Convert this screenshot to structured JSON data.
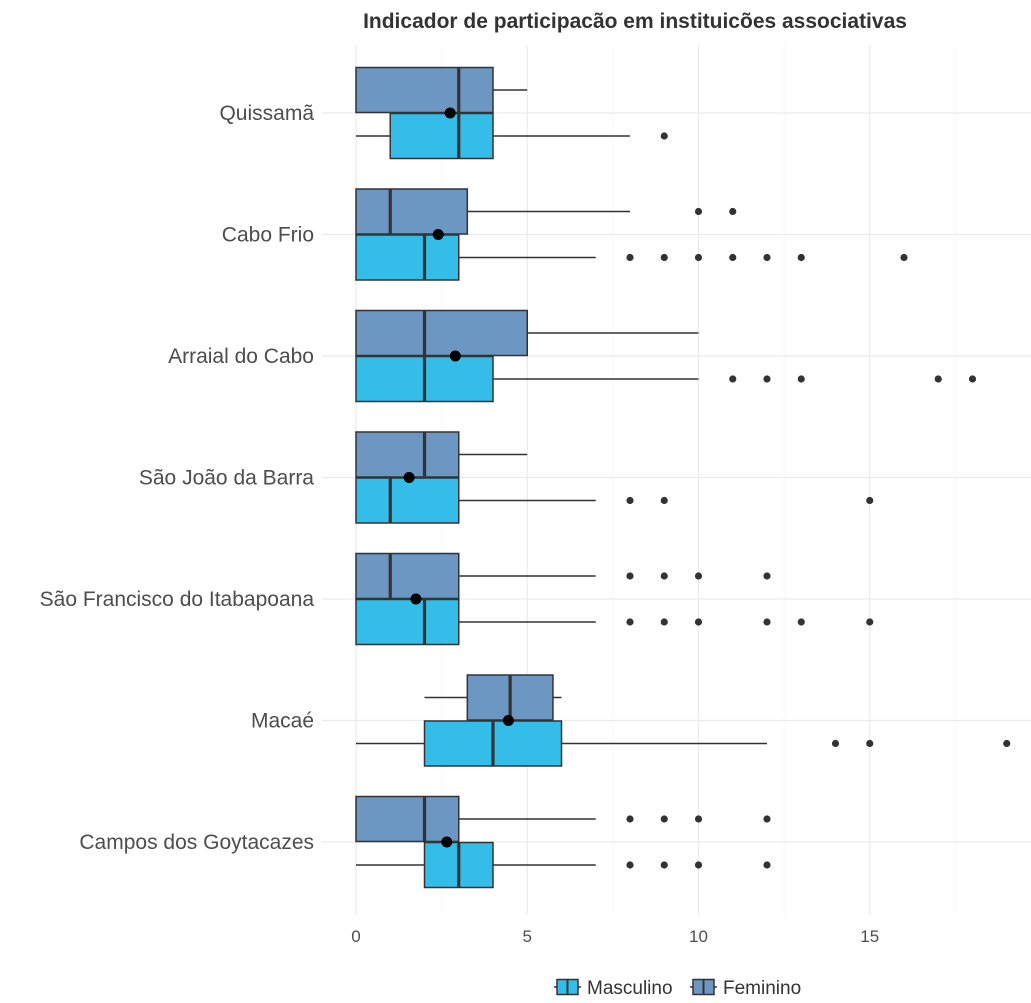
{
  "chart_data": {
    "type": "boxplot",
    "title": "Indicador de participacão em instituicões associativas",
    "xlabel": "",
    "ylabel": "",
    "xlim": [
      0,
      19.5
    ],
    "x_ticks": [
      0,
      5,
      10,
      15
    ],
    "grid": true,
    "legend_position": "bottom",
    "categories": [
      "Quissamã",
      "Cabo Frio",
      "Arraial do Cabo",
      "São João da Barra",
      "São Francisco do Itabapoana",
      "Macaé",
      "Campos dos Goytacazes"
    ],
    "series": [
      {
        "name": "Masculino",
        "color": "#35bde9",
        "boxes": [
          {
            "category": "Quissamã",
            "whisker_low": 0,
            "q1": 1,
            "median": 3,
            "q3": 4,
            "whisker_high": 8,
            "outliers": [
              9
            ]
          },
          {
            "category": "Cabo Frio",
            "whisker_low": 0,
            "q1": 0,
            "median": 2,
            "q3": 3,
            "whisker_high": 7,
            "outliers": [
              8,
              9,
              10,
              11,
              12,
              13,
              16
            ]
          },
          {
            "category": "Arraial do Cabo",
            "whisker_low": 0,
            "q1": 0,
            "median": 2,
            "q3": 4,
            "whisker_high": 10,
            "outliers": [
              11,
              12,
              13,
              17,
              18
            ]
          },
          {
            "category": "São João da Barra",
            "whisker_low": 0,
            "q1": 0,
            "median": 1,
            "q3": 3,
            "whisker_high": 7,
            "outliers": [
              8,
              9,
              15
            ]
          },
          {
            "category": "São Francisco do Itabapoana",
            "whisker_low": 0,
            "q1": 0,
            "median": 2,
            "q3": 3,
            "whisker_high": 7,
            "outliers": [
              8,
              9,
              10,
              12,
              13,
              15
            ]
          },
          {
            "category": "Macaé",
            "whisker_low": 0,
            "q1": 2,
            "median": 4,
            "q3": 6,
            "whisker_high": 12,
            "outliers": [
              14,
              15,
              19
            ]
          },
          {
            "category": "Campos dos Goytacazes",
            "whisker_low": 0,
            "q1": 2,
            "median": 3,
            "q3": 4,
            "whisker_high": 7,
            "outliers": [
              8,
              9,
              10,
              12
            ]
          }
        ]
      },
      {
        "name": "Feminino",
        "color": "#6b97c2",
        "boxes": [
          {
            "category": "Quissamã",
            "whisker_low": 0,
            "q1": 0,
            "median": 3,
            "q3": 4,
            "whisker_high": 5,
            "outliers": []
          },
          {
            "category": "Cabo Frio",
            "whisker_low": 0,
            "q1": 0,
            "median": 1,
            "q3": 3.25,
            "whisker_high": 8,
            "outliers": [
              10,
              11
            ]
          },
          {
            "category": "Arraial do Cabo",
            "whisker_low": 0,
            "q1": 0,
            "median": 2,
            "q3": 5,
            "whisker_high": 10,
            "outliers": []
          },
          {
            "category": "São João da Barra",
            "whisker_low": 0,
            "q1": 0,
            "median": 2,
            "q3": 3,
            "whisker_high": 5,
            "outliers": []
          },
          {
            "category": "São Francisco do Itabapoana",
            "whisker_low": 0,
            "q1": 0,
            "median": 1,
            "q3": 3,
            "whisker_high": 7,
            "outliers": [
              8,
              9,
              10,
              12
            ]
          },
          {
            "category": "Macaé",
            "whisker_low": 2,
            "q1": 3.25,
            "median": 4.5,
            "q3": 5.75,
            "whisker_high": 6,
            "outliers": []
          },
          {
            "category": "Campos dos Goytacazes",
            "whisker_low": 0,
            "q1": 0,
            "median": 2,
            "q3": 3,
            "whisker_high": 7,
            "outliers": [
              8,
              9,
              10,
              12
            ]
          }
        ]
      }
    ],
    "means": [
      {
        "category": "Quissamã",
        "value": 2.75
      },
      {
        "category": "Cabo Frio",
        "value": 2.4
      },
      {
        "category": "Arraial do Cabo",
        "value": 2.9
      },
      {
        "category": "São João da Barra",
        "value": 1.55
      },
      {
        "category": "São Francisco do Itabapoana",
        "value": 1.75
      },
      {
        "category": "Macaé",
        "value": 4.45
      },
      {
        "category": "Campos dos Goytacazes",
        "value": 2.65
      }
    ]
  }
}
